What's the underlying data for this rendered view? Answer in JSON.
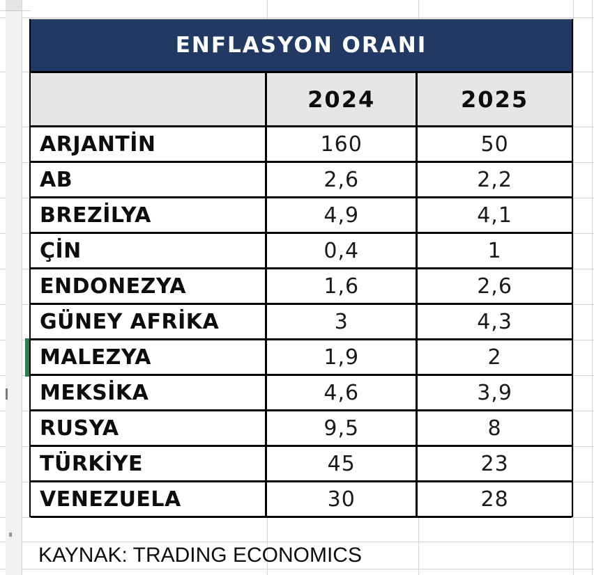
{
  "table": {
    "title": "ENFLASYON ORANI",
    "columns": [
      "2024",
      "2025"
    ],
    "rows": [
      {
        "label": "ARJANTİN",
        "y2024": "160",
        "y2025": "50"
      },
      {
        "label": "AB",
        "y2024": "2,6",
        "y2025": "2,2"
      },
      {
        "label": "BREZİLYA",
        "y2024": "4,9",
        "y2025": "4,1"
      },
      {
        "label": "ÇİN",
        "y2024": "0,4",
        "y2025": "1"
      },
      {
        "label": "ENDONEZYA",
        "y2024": "1,6",
        "y2025": "2,6"
      },
      {
        "label": "GÜNEY AFRİKA",
        "y2024": "3",
        "y2025": "4,3"
      },
      {
        "label": "MALEZYA",
        "y2024": "1,9",
        "y2025": "2"
      },
      {
        "label": "MEKSİKA",
        "y2024": "4,6",
        "y2025": "3,9"
      },
      {
        "label": "RUSYA",
        "y2024": "9,5",
        "y2025": "8"
      },
      {
        "label": "TÜRKİYE",
        "y2024": "45",
        "y2025": "23"
      },
      {
        "label": "VENEZUELA",
        "y2024": "30",
        "y2025": "28"
      }
    ],
    "source": "KAYNAK: TRADING ECONOMICS"
  },
  "colors": {
    "title_bg": "#223A63",
    "header_bg": "#E7E6E6",
    "border": "#000000",
    "gridline": "#D4D4D4",
    "active_cell_green": "#2E7D4E"
  },
  "chart_data": {
    "type": "table",
    "title": "ENFLASYON ORANI",
    "categories": [
      "ARJANTİN",
      "AB",
      "BREZİLYA",
      "ÇİN",
      "ENDONEZYA",
      "GÜNEY AFRİKA",
      "MALEZYA",
      "MEKSİKA",
      "RUSYA",
      "TÜRKİYE",
      "VENEZUELA"
    ],
    "series": [
      {
        "name": "2024",
        "values": [
          160,
          2.6,
          4.9,
          0.4,
          1.6,
          3,
          1.9,
          4.6,
          9.5,
          45,
          30
        ]
      },
      {
        "name": "2025",
        "values": [
          50,
          2.2,
          4.1,
          1,
          2.6,
          4.3,
          2,
          3.9,
          8,
          23,
          28
        ]
      }
    ],
    "source": "KAYNAK: TRADING ECONOMICS"
  }
}
